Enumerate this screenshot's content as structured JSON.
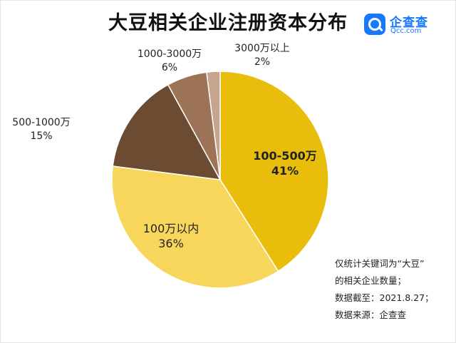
{
  "title": "大豆相关企业注册资本分布",
  "logo": {
    "name": "企查查",
    "sub": "Qcc.com"
  },
  "colors": {
    "slice_100_500": "#e8bd0b",
    "slice_under_100": "#f8d65b",
    "slice_500_1000": "#6b4c33",
    "slice_1000_3000": "#9c7356",
    "slice_over_3000": "#c5a58d"
  },
  "chart_data": {
    "type": "pie",
    "slices": [
      {
        "label": "100-500万",
        "value": 41,
        "value_text": "41%"
      },
      {
        "label": "100万以内",
        "value": 36,
        "value_text": "36%"
      },
      {
        "label": "500-1000万",
        "value": 15,
        "value_text": "15%"
      },
      {
        "label": "1000-3000万",
        "value": 6,
        "value_text": "6%"
      },
      {
        "label": "3000万以上",
        "value": 2,
        "value_text": "2%"
      }
    ]
  },
  "notes": [
    "仅统计关键词为“大豆”",
    "的相关企业数量；",
    "数据截至：2021.8.27；",
    "数据来源：企查查"
  ]
}
